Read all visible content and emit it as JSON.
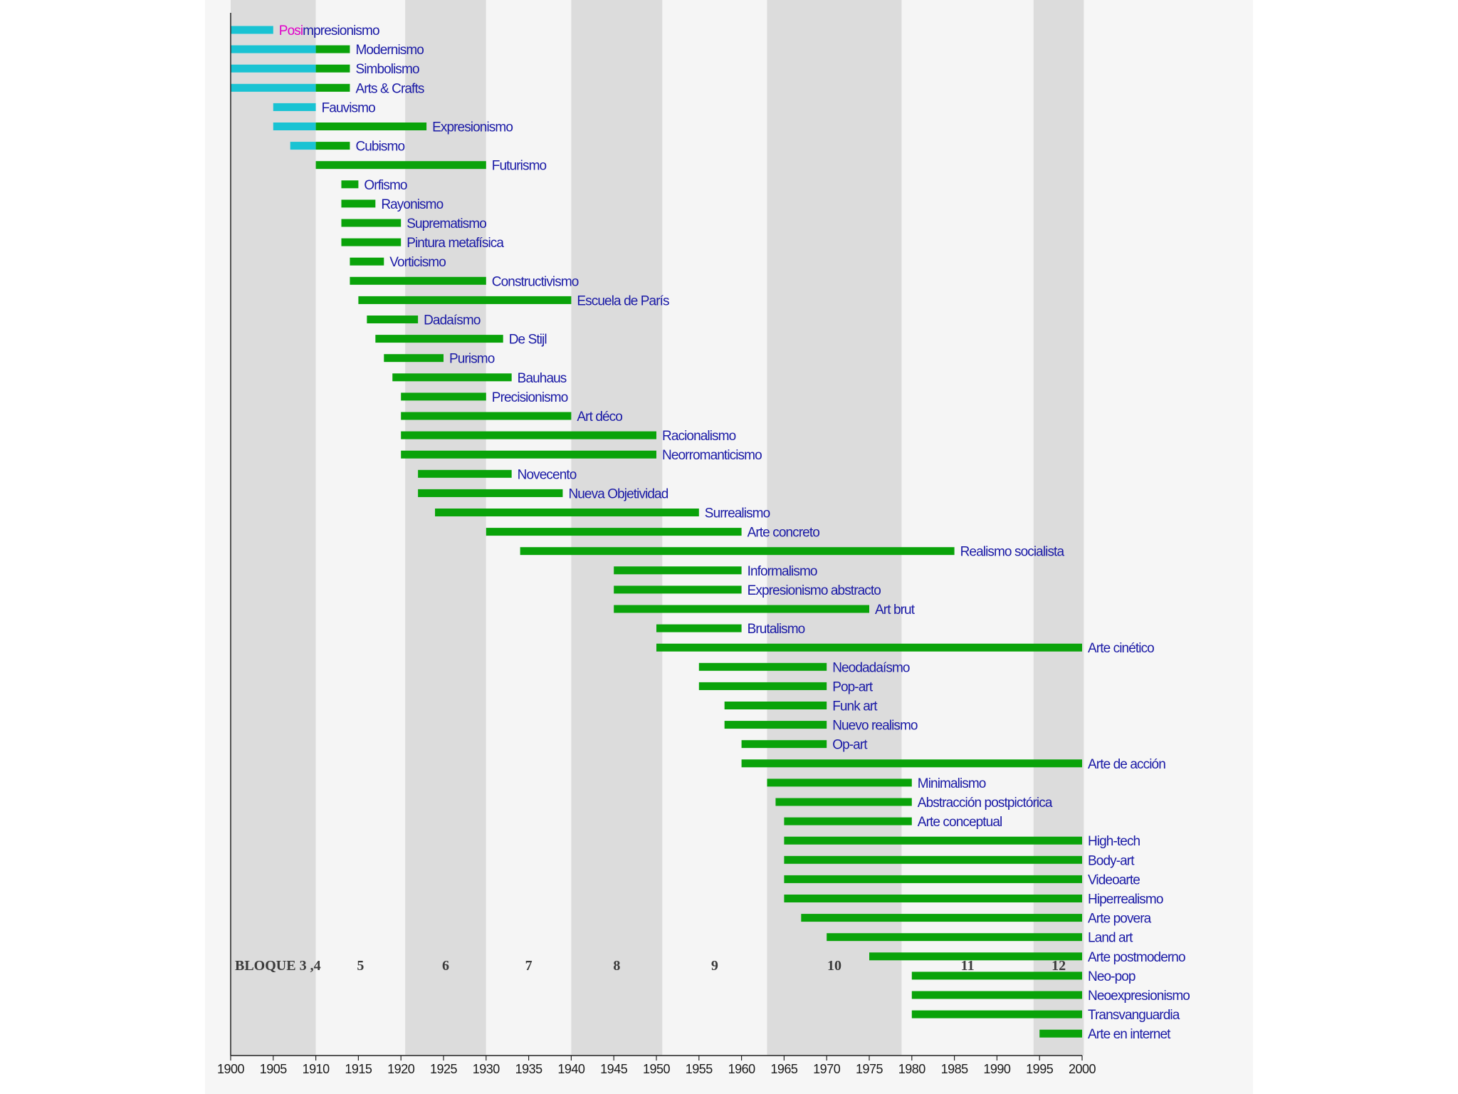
{
  "chart_data": {
    "type": "bar",
    "subtype": "timeline-gantt",
    "title": "",
    "xlabel": "",
    "ylabel": "",
    "xlim": [
      1900,
      2000
    ],
    "grid": false,
    "x_ticks": [
      "1900",
      "1905",
      "1910",
      "1915",
      "1920",
      "1925",
      "1930",
      "1935",
      "1940",
      "1945",
      "1950",
      "1955",
      "1960",
      "1965",
      "1970",
      "1975",
      "1980",
      "1985",
      "1990",
      "1995",
      "2000"
    ],
    "colors": {
      "bar": "#0aa30a",
      "pre1910": "#19c3d3",
      "label": "#1a1aa6",
      "highlight": "#e000c8",
      "band_dark": "#dcdcdc",
      "band_light": "#f5f5f5",
      "axis": "#222222"
    },
    "bloques": [
      {
        "label": "BLOQUE 3 ,4",
        "from": 1900,
        "to": 1910,
        "shaded": true
      },
      {
        "label": "5",
        "from": 1910,
        "to": 1920.5,
        "shaded": false
      },
      {
        "label": "6",
        "from": 1920.5,
        "to": 1930,
        "shaded": true
      },
      {
        "label": "7",
        "from": 1930,
        "to": 1940,
        "shaded": false
      },
      {
        "label": "8",
        "from": 1940,
        "to": 1950.7,
        "shaded": true
      },
      {
        "label": "9",
        "from": 1950.7,
        "to": 1963,
        "shaded": false
      },
      {
        "label": "10",
        "from": 1963,
        "to": 1978.8,
        "shaded": true
      },
      {
        "label": "11",
        "from": 1978.8,
        "to": 1994.3,
        "shaded": false
      },
      {
        "label": "12",
        "from": 1994.3,
        "to": 2000.2,
        "shaded": true
      }
    ],
    "movements": [
      {
        "name": "Posimpresionismo",
        "start": 1900,
        "end": 1905,
        "highlight": 4
      },
      {
        "name": "Modernismo",
        "start": 1900,
        "end": 1914
      },
      {
        "name": "Simbolismo",
        "start": 1900,
        "end": 1914
      },
      {
        "name": "Arts & Crafts",
        "start": 1900,
        "end": 1914
      },
      {
        "name": "Fauvismo",
        "start": 1905,
        "end": 1910
      },
      {
        "name": "Expresionismo",
        "start": 1905,
        "end": 1923
      },
      {
        "name": "Cubismo",
        "start": 1907,
        "end": 1914
      },
      {
        "name": "Futurismo",
        "start": 1910,
        "end": 1930
      },
      {
        "name": "Orfismo",
        "start": 1913,
        "end": 1915
      },
      {
        "name": "Rayonismo",
        "start": 1913,
        "end": 1917
      },
      {
        "name": "Suprematismo",
        "start": 1913,
        "end": 1920
      },
      {
        "name": "Pintura metafísica",
        "start": 1913,
        "end": 1920
      },
      {
        "name": "Vorticismo",
        "start": 1914,
        "end": 1918
      },
      {
        "name": "Constructivismo",
        "start": 1914,
        "end": 1930
      },
      {
        "name": "Escuela de París",
        "start": 1915,
        "end": 1940
      },
      {
        "name": "Dadaísmo",
        "start": 1916,
        "end": 1922
      },
      {
        "name": "De Stijl",
        "start": 1917,
        "end": 1932
      },
      {
        "name": "Purismo",
        "start": 1918,
        "end": 1925
      },
      {
        "name": "Bauhaus",
        "start": 1919,
        "end": 1933
      },
      {
        "name": "Precisionismo",
        "start": 1920,
        "end": 1930
      },
      {
        "name": "Art déco",
        "start": 1920,
        "end": 1940
      },
      {
        "name": "Racionalismo",
        "start": 1920,
        "end": 1950
      },
      {
        "name": "Neorromanticismo",
        "start": 1920,
        "end": 1950
      },
      {
        "name": "Novecento",
        "start": 1922,
        "end": 1933
      },
      {
        "name": "Nueva Objetividad",
        "start": 1922,
        "end": 1939
      },
      {
        "name": "Surrealismo",
        "start": 1924,
        "end": 1955
      },
      {
        "name": "Arte concreto",
        "start": 1930,
        "end": 1960
      },
      {
        "name": "Realismo socialista",
        "start": 1934,
        "end": 1985
      },
      {
        "name": "Informalismo",
        "start": 1945,
        "end": 1960
      },
      {
        "name": "Expresionismo abstracto",
        "start": 1945,
        "end": 1960
      },
      {
        "name": "Art brut",
        "start": 1945,
        "end": 1975
      },
      {
        "name": "Brutalismo",
        "start": 1950,
        "end": 1960
      },
      {
        "name": "Arte cinético",
        "start": 1950,
        "end": 2000
      },
      {
        "name": "Neodadaísmo",
        "start": 1955,
        "end": 1970
      },
      {
        "name": "Pop-art",
        "start": 1955,
        "end": 1970
      },
      {
        "name": "Funk art",
        "start": 1958,
        "end": 1970
      },
      {
        "name": "Nuevo realismo",
        "start": 1958,
        "end": 1970
      },
      {
        "name": "Op-art",
        "start": 1960,
        "end": 1970
      },
      {
        "name": "Arte de acción",
        "start": 1960,
        "end": 2000
      },
      {
        "name": "Minimalismo",
        "start": 1963,
        "end": 1980
      },
      {
        "name": "Abstracción postpictórica",
        "start": 1964,
        "end": 1980
      },
      {
        "name": "Arte conceptual",
        "start": 1965,
        "end": 1980
      },
      {
        "name": "High-tech",
        "start": 1965,
        "end": 2000
      },
      {
        "name": "Body-art",
        "start": 1965,
        "end": 2000
      },
      {
        "name": "Videoarte",
        "start": 1965,
        "end": 2000
      },
      {
        "name": "Hiperrealismo",
        "start": 1965,
        "end": 2000
      },
      {
        "name": "Arte povera",
        "start": 1967,
        "end": 2000
      },
      {
        "name": "Land art",
        "start": 1970,
        "end": 2000
      },
      {
        "name": "Arte postmoderno",
        "start": 1975,
        "end": 2000
      },
      {
        "name": "Neo-pop",
        "start": 1980,
        "end": 2000
      },
      {
        "name": "Neoexpresionismo",
        "start": 1980,
        "end": 2000
      },
      {
        "name": "Transvanguardia",
        "start": 1980,
        "end": 2000
      },
      {
        "name": "Arte en internet",
        "start": 1995,
        "end": 2000
      }
    ]
  }
}
